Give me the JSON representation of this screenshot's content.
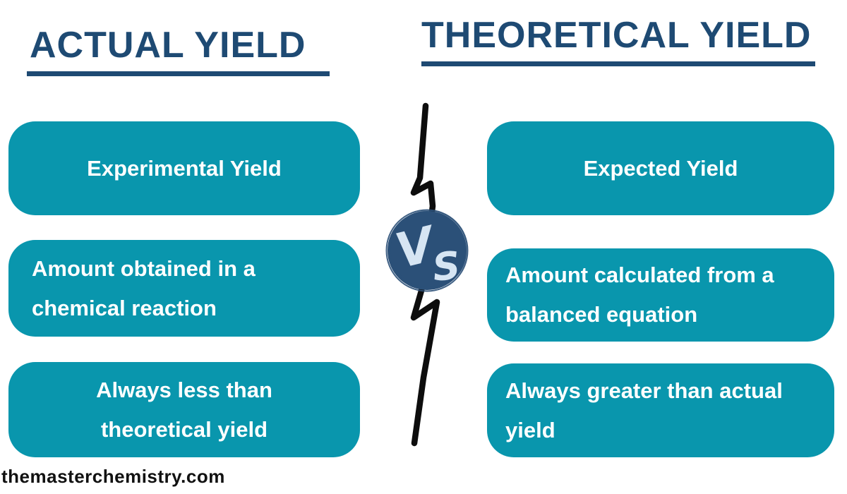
{
  "headers": {
    "left": "ACTUAL YIELD",
    "right": "THEORETICAL YIELD"
  },
  "left_boxes": [
    {
      "lines": [
        "Experimental Yield"
      ]
    },
    {
      "lines": [
        "Amount obtained in a",
        "chemical reaction"
      ]
    },
    {
      "lines": [
        "Always less than",
        "theoretical yield"
      ]
    }
  ],
  "right_boxes": [
    {
      "lines": [
        "Expected Yield"
      ]
    },
    {
      "lines": [
        "Amount calculated from a",
        "balanced equation"
      ]
    },
    {
      "lines": [
        "Always greater than actual",
        "yield"
      ]
    }
  ],
  "vs_badge": {
    "label": "VS"
  },
  "footer": {
    "watermark": "themasterchemistry.com"
  },
  "colors": {
    "teal": "#0996ad",
    "header_blue": "#1e4a73",
    "vs_circle_blue": "#2b5078",
    "vs_text_blue": "#d6e5f3",
    "bolt_black": "#0d0d0d"
  }
}
